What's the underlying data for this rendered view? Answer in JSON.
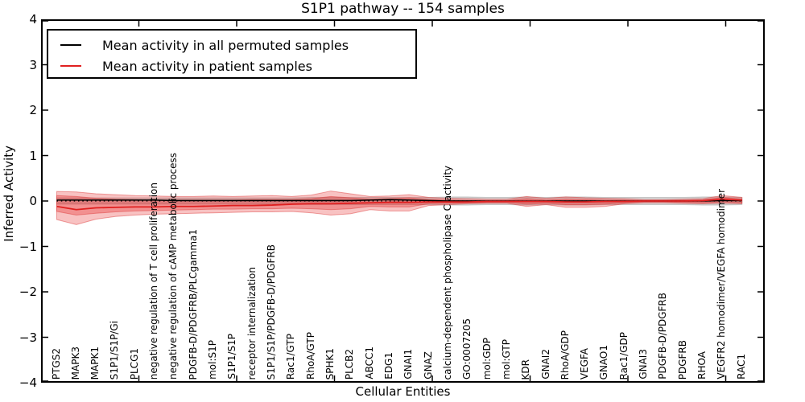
{
  "chart_data": {
    "type": "line",
    "title": "S1P1 pathway -- 154 samples",
    "xlabel": "Cellular Entities",
    "ylabel": "Inferred Activity",
    "ylim": [
      -4,
      4
    ],
    "ytick_labels": [
      "4",
      "3",
      "2",
      "1",
      "0",
      "−1",
      "−2",
      "−3",
      "−4"
    ],
    "ytick_values": [
      4,
      3,
      2,
      1,
      0,
      -1,
      -2,
      -3,
      -4
    ],
    "grid": false,
    "legend_position": "upper left",
    "zero_line": {
      "style": "dotted",
      "color": "#000000",
      "y": 0
    },
    "categories": [
      "PTGS2",
      "MAPK3",
      "MAPK1",
      "S1P1/S1P/Gi",
      "PLCG1",
      "negative regulation of T cell proliferation",
      "negative regulation of cAMP metabolic process",
      "PDGFB-D/PDGFRB/PLCgamma1",
      "mol:S1P",
      "S1P1/S1P",
      "receptor internalization",
      "S1P1/S1P/PDGFB-D/PDGFRB",
      "Rac1/GTP",
      "RhoA/GTP",
      "SPHK1",
      "PLCB2",
      "ABCC1",
      "EDG1",
      "GNAI1",
      "GNAZ",
      "calcium-dependent phospholipase C activity",
      "GO:0007205",
      "mol:GDP",
      "mol:GTP",
      "KDR",
      "GNAI2",
      "RhoA/GDP",
      "VEGFA",
      "GNAO1",
      "Rac1/GDP",
      "GNAI3",
      "PDGFB-D/PDGFRB",
      "PDGFRB",
      "RHOA",
      "VEGFR2 homodimer/VEGFA homodimer",
      "RAC1"
    ],
    "series": [
      {
        "name": "Mean activity in all permuted samples",
        "color": "#000000",
        "values": [
          0.02,
          0.02,
          0.02,
          0.02,
          0.02,
          0.02,
          0.01,
          0.01,
          0.01,
          0.01,
          0.01,
          0.01,
          0.01,
          0.01,
          0.01,
          0.01,
          0.02,
          0.03,
          0.02,
          0.01,
          0,
          0,
          0,
          0,
          0,
          0,
          0,
          0,
          0,
          0,
          0,
          0,
          0,
          0,
          0.01,
          0.01
        ]
      },
      {
        "name": "Mean activity in patient samples",
        "color": "#e02020",
        "values": [
          -0.12,
          -0.19,
          -0.15,
          -0.14,
          -0.13,
          -0.13,
          -0.12,
          -0.12,
          -0.11,
          -0.1,
          -0.1,
          -0.09,
          -0.07,
          -0.06,
          -0.06,
          -0.05,
          -0.04,
          -0.03,
          -0.03,
          -0.02,
          -0.02,
          -0.02,
          -0.01,
          -0.01,
          -0.01,
          -0.01,
          -0.02,
          -0.02,
          -0.01,
          -0.01,
          0,
          0,
          0,
          0.01,
          0.04,
          0.02
        ]
      }
    ],
    "bands": [
      {
        "name": "permuted-samples-range",
        "color": "rgba(130,130,130,0.35)",
        "upper": [
          0.07,
          0.07,
          0.07,
          0.07,
          0.07,
          0.07,
          0.07,
          0.07,
          0.07,
          0.07,
          0.07,
          0.07,
          0.07,
          0.08,
          0.08,
          0.08,
          0.08,
          0.08,
          0.08,
          0.08,
          0.09,
          0.09,
          0.08,
          0.08,
          0.09,
          0.08,
          0.09,
          0.09,
          0.08,
          0.08,
          0.08,
          0.08,
          0.08,
          0.09,
          0.09,
          0.08
        ],
        "lower": [
          -0.07,
          -0.07,
          -0.07,
          -0.07,
          -0.07,
          -0.07,
          -0.07,
          -0.07,
          -0.07,
          -0.07,
          -0.07,
          -0.07,
          -0.07,
          -0.08,
          -0.08,
          -0.08,
          -0.08,
          -0.08,
          -0.08,
          -0.08,
          -0.09,
          -0.09,
          -0.08,
          -0.08,
          -0.09,
          -0.08,
          -0.09,
          -0.09,
          -0.08,
          -0.08,
          -0.08,
          -0.08,
          -0.08,
          -0.09,
          -0.09,
          -0.08
        ]
      },
      {
        "name": "patient-samples-outer-range",
        "color": "rgba(228,30,30,0.27)",
        "upper": [
          0.21,
          0.2,
          0.16,
          0.14,
          0.12,
          0.11,
          0.1,
          0.1,
          0.11,
          0.1,
          0.11,
          0.12,
          0.1,
          0.13,
          0.22,
          0.16,
          0.1,
          0.11,
          0.14,
          0.08,
          0.06,
          0.05,
          0.04,
          0.04,
          0.1,
          0.06,
          0.09,
          0.07,
          0.06,
          0.05,
          0.03,
          0.03,
          0.04,
          0.05,
          0.12,
          0.08
        ],
        "lower": [
          -0.41,
          -0.52,
          -0.4,
          -0.34,
          -0.31,
          -0.29,
          -0.28,
          -0.27,
          -0.26,
          -0.25,
          -0.24,
          -0.24,
          -0.23,
          -0.26,
          -0.31,
          -0.28,
          -0.19,
          -0.22,
          -0.22,
          -0.1,
          -0.08,
          -0.06,
          -0.05,
          -0.05,
          -0.12,
          -0.08,
          -0.14,
          -0.14,
          -0.12,
          -0.06,
          -0.04,
          -0.04,
          -0.05,
          -0.06,
          -0.05,
          -0.06
        ]
      },
      {
        "name": "patient-samples-inner-range",
        "color": "rgba(228,30,30,0.30)",
        "upper": [
          0.12,
          0.1,
          0.06,
          0.04,
          0.03,
          0.02,
          0.02,
          0.02,
          0.02,
          0.02,
          0.03,
          0.03,
          0.03,
          0.05,
          0.1,
          0.07,
          0.04,
          0.05,
          0.07,
          0.03,
          0.02,
          0.01,
          0.01,
          0.01,
          0.05,
          0.02,
          0.04,
          0.03,
          0.02,
          0.02,
          0.01,
          0.01,
          0.02,
          0.02,
          0.08,
          0.04
        ],
        "lower": [
          -0.23,
          -0.31,
          -0.27,
          -0.24,
          -0.22,
          -0.21,
          -0.2,
          -0.19,
          -0.18,
          -0.18,
          -0.17,
          -0.17,
          -0.16,
          -0.17,
          -0.19,
          -0.17,
          -0.12,
          -0.13,
          -0.13,
          -0.06,
          -0.05,
          -0.04,
          -0.03,
          -0.03,
          -0.07,
          -0.05,
          -0.08,
          -0.08,
          -0.07,
          -0.04,
          -0.02,
          -0.02,
          -0.03,
          -0.04,
          -0.02,
          -0.04
        ]
      }
    ]
  }
}
